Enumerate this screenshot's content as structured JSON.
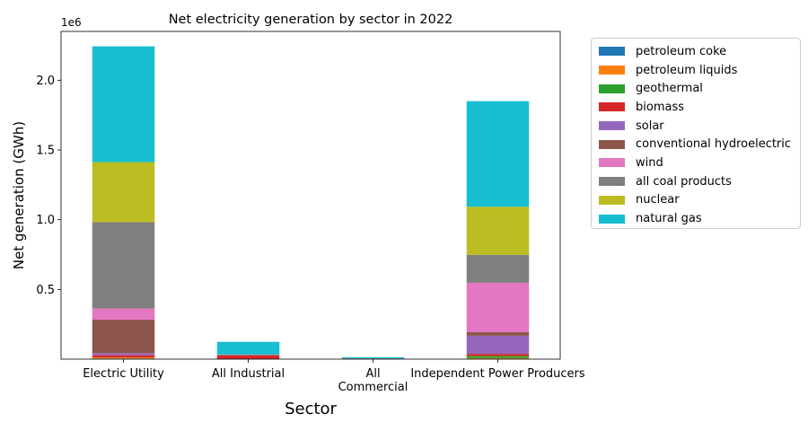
{
  "chart_data": {
    "type": "bar",
    "stacked": true,
    "title": "Net electricity generation by sector in 2022",
    "xlabel": "Sector",
    "ylabel": "Net generation (GWh)",
    "y_scale_label": "1e6",
    "ylim": [
      0,
      2350000
    ],
    "yticks": [
      500000,
      1000000,
      1500000,
      2000000
    ],
    "ytick_labels": [
      "0.5",
      "1.0",
      "1.5",
      "2.0"
    ],
    "grid": false,
    "legend_position": "outside-right",
    "categories": [
      "Electric Utility",
      "All Industrial",
      "All\nCommercial",
      "Independent Power Producers"
    ],
    "series": [
      {
        "name": "petroleum coke",
        "color": "#1f77b4",
        "values": [
          4000,
          2000,
          0,
          3000
        ]
      },
      {
        "name": "petroleum liquids",
        "color": "#ff7f0e",
        "values": [
          8000,
          1000,
          0,
          5000
        ]
      },
      {
        "name": "geothermal",
        "color": "#2ca02c",
        "values": [
          1000,
          0,
          0,
          15000
        ]
      },
      {
        "name": "biomass",
        "color": "#d62728",
        "values": [
          15000,
          25000,
          3000,
          15000
        ]
      },
      {
        "name": "solar",
        "color": "#9467bd",
        "values": [
          15000,
          1000,
          2000,
          130000
        ]
      },
      {
        "name": "conventional hydroelectric",
        "color": "#8c564b",
        "values": [
          240000,
          2000,
          0,
          25000
        ]
      },
      {
        "name": "wind",
        "color": "#e377c2",
        "values": [
          80000,
          0,
          0,
          355000
        ]
      },
      {
        "name": "all coal products",
        "color": "#7f7f7f",
        "values": [
          620000,
          3000,
          1000,
          200000
        ]
      },
      {
        "name": "nuclear",
        "color": "#bcbd22",
        "values": [
          430000,
          0,
          0,
          345000
        ]
      },
      {
        "name": "natural gas",
        "color": "#17becf",
        "values": [
          830000,
          90000,
          8000,
          757000
        ]
      }
    ]
  }
}
